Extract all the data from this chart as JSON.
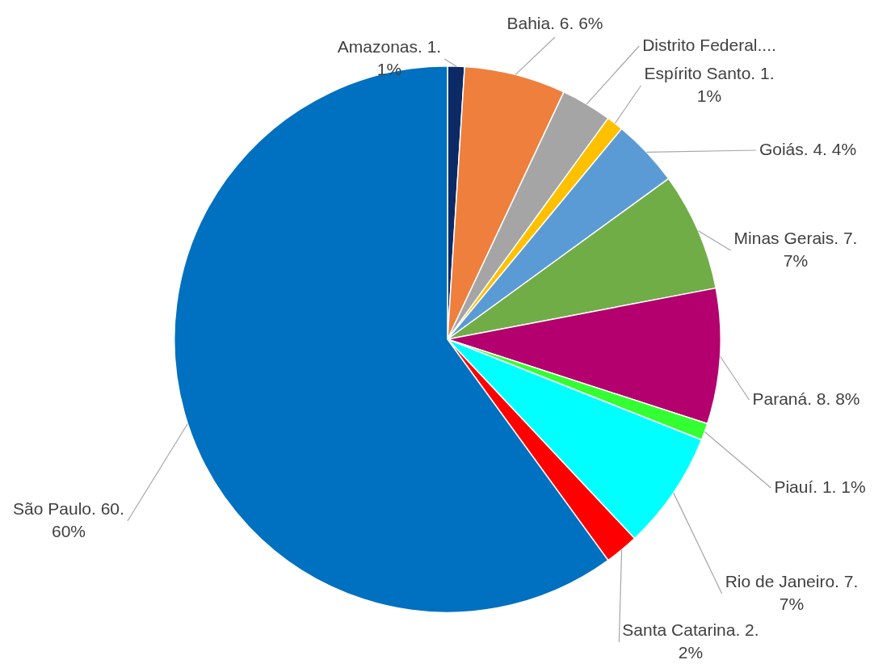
{
  "chart_data": {
    "type": "pie",
    "categories": [
      "Amazonas. 1. 1%",
      "Bahia. 6. 6%",
      "Distrito Federal....",
      "Espírito Santo. 1. 1%",
      "Goiás. 4. 4%",
      "Minas Gerais. 7. 7%",
      "Paraná. 8. 8%",
      "Piauí. 1. 1%",
      "Rio de Janeiro. 7. 7%",
      "Santa Catarina. 2. 2%",
      "São Paulo. 60. 60%"
    ],
    "values": [
      1,
      6,
      3,
      1,
      4,
      7,
      8,
      1,
      7,
      2,
      60
    ],
    "colors": [
      "#0b2a66",
      "#ee7f3c",
      "#a5a5a5",
      "#ffc000",
      "#5b9bd5",
      "#70ad47",
      "#b4006e",
      "#33ff33",
      "#00ffff",
      "#ff0000",
      "#0070c0"
    ],
    "legend": false
  }
}
